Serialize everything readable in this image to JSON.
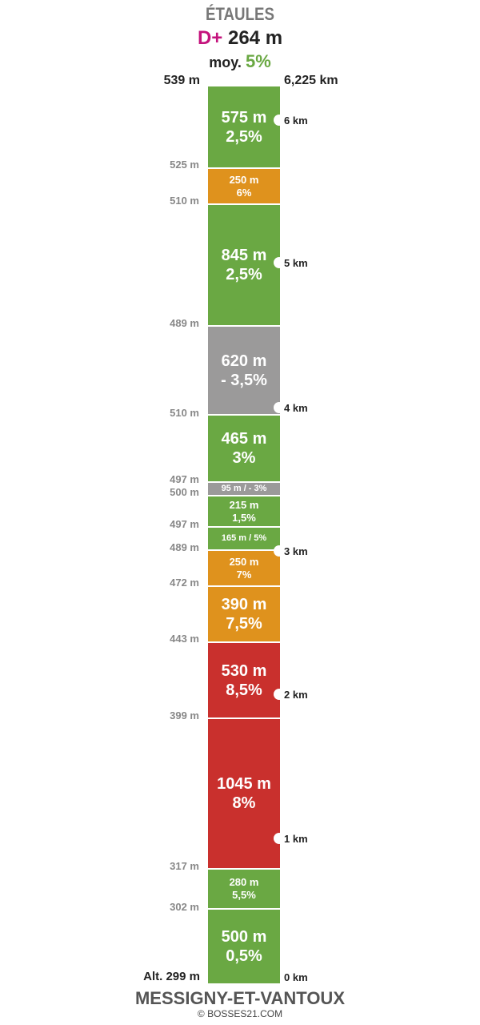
{
  "header": {
    "title": "ÉTAULES",
    "dplus_label": "D+",
    "dplus_value": "264 m",
    "avg_label": "moy.",
    "avg_value": "5%"
  },
  "top": {
    "altitude": "539 m",
    "distance": "6,225 km"
  },
  "bottom": {
    "altitude": "Alt. 299 m",
    "distance": "0 km",
    "start_name": "MESSIGNY-ET-VANTOUX",
    "credit": "© BOSSES21.COM"
  },
  "segments": [
    {
      "length": "575 m",
      "grade": "2,5%",
      "color": "green",
      "size": "big"
    },
    {
      "length": "250 m",
      "grade": "6%",
      "color": "orange",
      "size": "small"
    },
    {
      "length": "845 m",
      "grade": "2,5%",
      "color": "green",
      "size": "big"
    },
    {
      "length": "620 m",
      "grade": "- 3,5%",
      "color": "grey",
      "size": "big"
    },
    {
      "length": "465 m",
      "grade": "3%",
      "color": "green",
      "size": "big"
    },
    {
      "length": "95 m / - 3%",
      "grade": "",
      "color": "grey",
      "size": "xsmall"
    },
    {
      "length": "215 m",
      "grade": "1,5%",
      "color": "green",
      "size": "small"
    },
    {
      "length": "165 m / 5%",
      "grade": "",
      "color": "green",
      "size": "xsmall"
    },
    {
      "length": "250 m",
      "grade": "7%",
      "color": "orange",
      "size": "small"
    },
    {
      "length": "390 m",
      "grade": "7,5%",
      "color": "orange",
      "size": "big"
    },
    {
      "length": "530 m",
      "grade": "8,5%",
      "color": "red",
      "size": "big"
    },
    {
      "length": "1045 m",
      "grade": "8%",
      "color": "red",
      "size": "big"
    },
    {
      "length": "280 m",
      "grade": "5,5%",
      "color": "green",
      "size": "small"
    },
    {
      "length": "500 m",
      "grade": "0,5%",
      "color": "green",
      "size": "big"
    }
  ],
  "boundary_altitudes": [
    "525 m",
    "510 m",
    "489 m",
    "510 m",
    "497 m",
    "500 m",
    "497 m",
    "489 m",
    "472 m",
    "443 m",
    "399 m",
    "317 m",
    "302 m"
  ],
  "km_markers": [
    "6 km",
    "5 km",
    "4 km",
    "3 km",
    "2 km",
    "1 km"
  ],
  "colors": {
    "green": "#6aa843",
    "orange": "#df921d",
    "grey": "#9b9a9a",
    "red": "#c9302d",
    "dplus": "#c4137d"
  }
}
